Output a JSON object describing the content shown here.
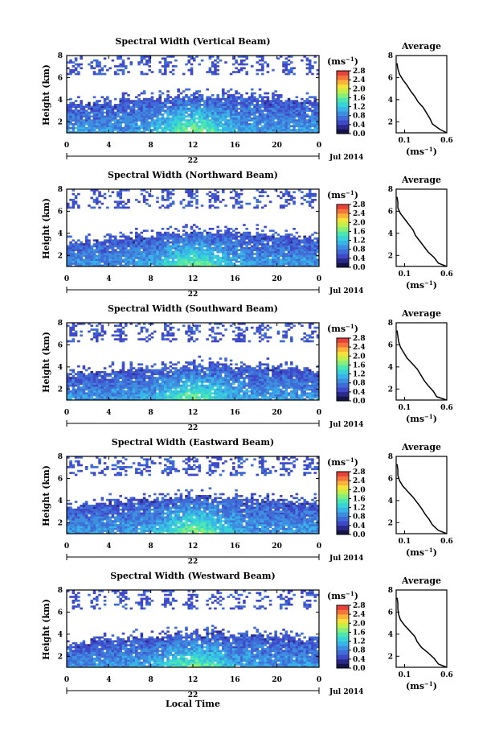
{
  "figure": {
    "x_axis_label": "Local Time",
    "date_label": "Jul 2014",
    "day_label": "22"
  },
  "colors": {
    "colorbar": [
      "#15154a",
      "#2a2a8a",
      "#3f49c8",
      "#3f6cd6",
      "#3e8ee0",
      "#39b4e8",
      "#37d3d6",
      "#4ee6b0",
      "#86ef7c",
      "#c2ef4a",
      "#f4e13b",
      "#fbb238",
      "#f4753a",
      "#e8413a"
    ],
    "profile_line": "#000000",
    "panel_frame": "#000000"
  },
  "chart_data": [
    {
      "type": "heatmap",
      "title": "Spectral Width (Vertical Beam)",
      "xlabel": "",
      "ylabel": "Height (km)",
      "x_ticks": [
        "0",
        "4",
        "8",
        "12",
        "16",
        "20",
        "0"
      ],
      "y_ticks": [
        "2",
        "4",
        "6",
        "8"
      ],
      "xlim": [
        0,
        24
      ],
      "ylim": [
        1,
        8
      ],
      "colorbar": {
        "unit": "(ms-1)",
        "ticks": [
          "0.0",
          "0.4",
          "0.8",
          "1.2",
          "1.6",
          "2.0",
          "2.4",
          "2.8"
        ],
        "range": [
          0,
          2.8
        ]
      },
      "echo_top_km": 3.8,
      "average_profile": {
        "title": "Average",
        "xlabel": "(ms-1)",
        "x_ticks": [
          "0.1",
          "0.6"
        ],
        "y_ticks": [
          "2",
          "4",
          "6",
          "8"
        ],
        "xlim": [
          0.0,
          0.6
        ],
        "ylim": [
          1,
          8
        ],
        "height_km": [
          1.0,
          1.3,
          1.8,
          2.3,
          2.8,
          3.3,
          3.8,
          4.3,
          4.8,
          5.3,
          5.8,
          6.3,
          6.8,
          7.3
        ],
        "width": [
          0.6,
          0.52,
          0.43,
          0.4,
          0.36,
          0.32,
          0.26,
          0.22,
          0.17,
          0.13,
          0.08,
          0.04,
          0.02,
          0.01
        ]
      }
    },
    {
      "type": "heatmap",
      "title": "Spectral Width (Northward Beam)",
      "xlabel": "",
      "ylabel": "Height (km)",
      "x_ticks": [
        "0",
        "4",
        "8",
        "12",
        "16",
        "20",
        "0"
      ],
      "y_ticks": [
        "2",
        "4",
        "6",
        "8"
      ],
      "xlim": [
        0,
        24
      ],
      "ylim": [
        1,
        8
      ],
      "colorbar": {
        "unit": "(ms-1)",
        "ticks": [
          "0.0",
          "0.4",
          "0.8",
          "1.2",
          "1.6",
          "2.0",
          "2.4",
          "2.8"
        ],
        "range": [
          0,
          2.8
        ]
      },
      "echo_top_km": 3.5,
      "average_profile": {
        "title": "Average",
        "xlabel": "(ms-1)",
        "x_ticks": [
          "0.1",
          "0.6"
        ],
        "y_ticks": [
          "2",
          "4",
          "6",
          "8"
        ],
        "xlim": [
          0.0,
          0.6
        ],
        "ylim": [
          1,
          8
        ],
        "height_km": [
          1.0,
          1.3,
          1.8,
          2.3,
          2.8,
          3.3,
          3.8,
          4.3,
          4.8,
          5.3,
          5.8,
          6.3,
          6.8,
          7.3
        ],
        "width": [
          0.6,
          0.5,
          0.45,
          0.38,
          0.33,
          0.28,
          0.23,
          0.2,
          0.15,
          0.1,
          0.05,
          0.02,
          0.02,
          0.01
        ]
      }
    },
    {
      "type": "heatmap",
      "title": "Spectral Width (Southward Beam)",
      "xlabel": "",
      "ylabel": "Height (km)",
      "x_ticks": [
        "0",
        "4",
        "8",
        "12",
        "16",
        "20",
        "0"
      ],
      "y_ticks": [
        "2",
        "4",
        "6",
        "8"
      ],
      "xlim": [
        0,
        24
      ],
      "ylim": [
        1,
        8
      ],
      "colorbar": {
        "unit": "(ms-1)",
        "ticks": [
          "0.0",
          "0.4",
          "0.8",
          "1.2",
          "1.6",
          "2.0",
          "2.4",
          "2.8"
        ],
        "range": [
          0,
          2.8
        ]
      },
      "echo_top_km": 3.6,
      "average_profile": {
        "title": "Average",
        "xlabel": "(ms-1)",
        "x_ticks": [
          "0.1",
          "0.6"
        ],
        "y_ticks": [
          "2",
          "4",
          "6",
          "8"
        ],
        "xlim": [
          0.0,
          0.6
        ],
        "ylim": [
          1,
          8
        ],
        "height_km": [
          1.0,
          1.3,
          1.8,
          2.3,
          2.8,
          3.3,
          3.8,
          4.3,
          4.8,
          5.3,
          5.8,
          6.3,
          6.8,
          7.3
        ],
        "width": [
          0.6,
          0.48,
          0.44,
          0.38,
          0.33,
          0.29,
          0.25,
          0.19,
          0.13,
          0.09,
          0.05,
          0.03,
          0.02,
          0.01
        ]
      }
    },
    {
      "type": "heatmap",
      "title": "Spectral Width (Eastward Beam)",
      "xlabel": "",
      "ylabel": "Height (km)",
      "x_ticks": [
        "0",
        "4",
        "8",
        "12",
        "16",
        "20",
        "0"
      ],
      "y_ticks": [
        "2",
        "4",
        "6",
        "8"
      ],
      "xlim": [
        0,
        24
      ],
      "ylim": [
        1,
        8
      ],
      "colorbar": {
        "unit": "(ms-1)",
        "ticks": [
          "0.0",
          "0.4",
          "0.8",
          "1.2",
          "1.6",
          "2.0",
          "2.4",
          "2.8"
        ],
        "range": [
          0,
          2.8
        ]
      },
      "echo_top_km": 3.8,
      "average_profile": {
        "title": "Average",
        "xlabel": "(ms-1)",
        "x_ticks": [
          "0.1",
          "0.6"
        ],
        "y_ticks": [
          "2",
          "4",
          "6",
          "8"
        ],
        "xlim": [
          0.0,
          0.6
        ],
        "ylim": [
          1,
          8
        ],
        "height_km": [
          1.0,
          1.3,
          1.8,
          2.3,
          2.8,
          3.3,
          3.8,
          4.3,
          4.8,
          5.3,
          5.8,
          6.3,
          6.8,
          7.3
        ],
        "width": [
          0.6,
          0.5,
          0.43,
          0.39,
          0.34,
          0.3,
          0.25,
          0.2,
          0.14,
          0.08,
          0.04,
          0.02,
          0.02,
          0.01
        ]
      }
    },
    {
      "type": "heatmap",
      "title": "Spectral Width (Westward Beam)",
      "xlabel": "Local Time",
      "ylabel": "Height (km)",
      "x_ticks": [
        "0",
        "4",
        "8",
        "12",
        "16",
        "20",
        "0"
      ],
      "y_ticks": [
        "2",
        "4",
        "6",
        "8"
      ],
      "xlim": [
        0,
        24
      ],
      "ylim": [
        1,
        8
      ],
      "colorbar": {
        "unit": "(ms-1)",
        "ticks": [
          "0.0",
          "0.4",
          "0.8",
          "1.2",
          "1.6",
          "2.0",
          "2.4",
          "2.8"
        ],
        "range": [
          0,
          2.8
        ]
      },
      "echo_top_km": 3.5,
      "average_profile": {
        "title": "Average",
        "xlabel": "(ms-1)",
        "x_ticks": [
          "0.1",
          "0.6"
        ],
        "y_ticks": [
          "2",
          "4",
          "6",
          "8"
        ],
        "xlim": [
          0.0,
          0.6
        ],
        "ylim": [
          1,
          8
        ],
        "height_km": [
          1.0,
          1.3,
          1.8,
          2.3,
          2.8,
          3.3,
          3.8,
          4.3,
          4.8,
          5.3,
          5.8,
          6.3,
          6.8,
          7.3
        ],
        "width": [
          0.6,
          0.5,
          0.45,
          0.38,
          0.3,
          0.25,
          0.22,
          0.16,
          0.1,
          0.05,
          0.03,
          0.02,
          0.02,
          0.01
        ]
      }
    }
  ]
}
